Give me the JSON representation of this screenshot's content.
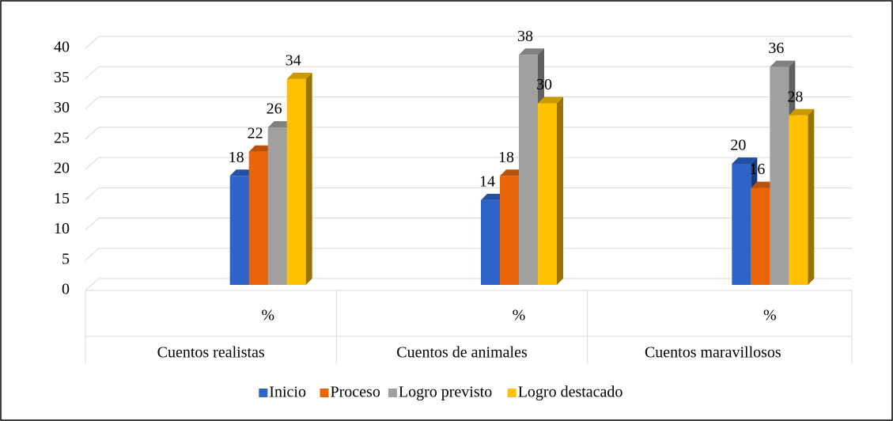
{
  "chart_data": {
    "type": "bar3d",
    "categories": [
      "Cuentos realistas",
      "Cuentos de animales",
      "Cuentos maravillosos"
    ],
    "subcategories": [
      "%",
      "%",
      "%"
    ],
    "series": [
      {
        "name": "Inicio",
        "color": "#2e64c8",
        "values": [
          18,
          14,
          20
        ]
      },
      {
        "name": "Proceso",
        "color": "#e8650a",
        "values": [
          22,
          18,
          16
        ]
      },
      {
        "name": "Logro previsto",
        "color": "#a0a0a0",
        "values": [
          26,
          38,
          36
        ]
      },
      {
        "name": "Logro destacado",
        "color": "#ffc000",
        "values": [
          34,
          30,
          28
        ]
      }
    ],
    "ylim": [
      0,
      40
    ],
    "yticks": [
      0,
      5,
      10,
      15,
      20,
      25,
      30,
      35,
      40
    ],
    "grid": true,
    "legend": "bottom"
  }
}
